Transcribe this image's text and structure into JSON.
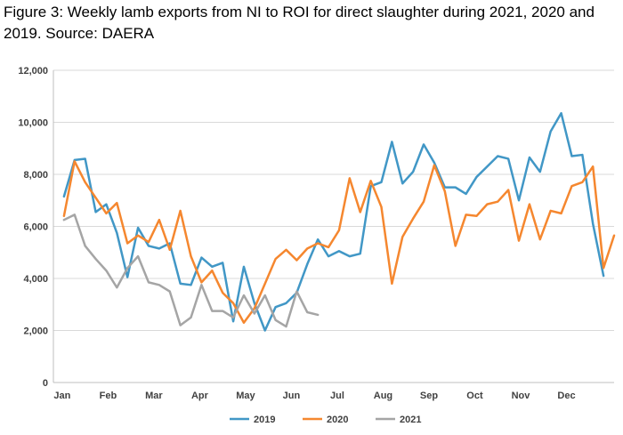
{
  "title": "Figure 3: Weekly lamb exports from NI to ROI for direct slaughter during 2021, 2020 and 2019. Source: DAERA",
  "chart_data": {
    "type": "line",
    "title": "Figure 3: Weekly lamb exports from NI to ROI for direct slaughter during 2021, 2020 and 2019. Source: DAERA",
    "x_unit": "week",
    "ylim": [
      0,
      12000
    ],
    "y_ticks": [
      0,
      2000,
      4000,
      6000,
      8000,
      10000,
      12000
    ],
    "y_tick_labels": [
      "0",
      "2,000",
      "4,000",
      "6,000",
      "8,000",
      "10,000",
      "12,000"
    ],
    "x_tick_labels": [
      "Jan",
      "Feb",
      "Mar",
      "Apr",
      "May",
      "Jun",
      "Jul",
      "Aug",
      "Sep",
      "Oct",
      "Nov",
      "Dec"
    ],
    "grid": "horizontal",
    "legend_position": "bottom",
    "series": [
      {
        "name": "2019",
        "color": "#4197c6",
        "weeks": [
          1,
          2,
          3,
          4,
          5,
          6,
          7,
          8,
          9,
          10,
          11,
          12,
          13,
          14,
          15,
          16,
          17,
          18,
          19,
          20,
          21,
          22,
          23,
          24,
          25,
          26,
          27,
          28,
          29,
          30,
          31,
          32,
          33,
          34,
          35,
          36,
          37,
          38,
          39,
          40,
          41,
          42,
          43,
          44,
          45,
          46,
          47,
          48,
          49,
          50,
          51,
          52
        ],
        "values": [
          7150,
          8550,
          8600,
          6550,
          6850,
          5750,
          4050,
          5950,
          5250,
          5150,
          5350,
          3800,
          3750,
          4800,
          4450,
          4600,
          2350,
          4450,
          3050,
          2000,
          2900,
          3050,
          3450,
          4550,
          5500,
          4850,
          5050,
          4850,
          4950,
          7550,
          7700,
          9250,
          7650,
          8100,
          9150,
          8450,
          7500,
          7500,
          7250,
          7900,
          8300,
          8700,
          8600,
          7000,
          8650,
          8100,
          9650,
          10350,
          8700,
          8750,
          6100,
          4100
        ]
      },
      {
        "name": "2020",
        "color": "#f5872f",
        "weeks": [
          1,
          2,
          3,
          4,
          5,
          6,
          7,
          8,
          9,
          10,
          11,
          12,
          13,
          14,
          15,
          16,
          17,
          18,
          19,
          20,
          21,
          22,
          23,
          24,
          25,
          26,
          27,
          28,
          29,
          30,
          31,
          32,
          33,
          34,
          35,
          36,
          37,
          38,
          39,
          40,
          41,
          42,
          43,
          44,
          45,
          46,
          47,
          48,
          49,
          50,
          51,
          52,
          53
        ],
        "values": [
          6400,
          8500,
          7700,
          7100,
          6500,
          6900,
          5350,
          5650,
          5400,
          6250,
          5100,
          6600,
          4850,
          3850,
          4300,
          3450,
          3050,
          2300,
          2850,
          3800,
          4750,
          5100,
          4700,
          5150,
          5350,
          5200,
          5850,
          7850,
          6550,
          7750,
          6750,
          3800,
          5600,
          6300,
          6950,
          8350,
          7350,
          5250,
          6450,
          6400,
          6850,
          6950,
          7400,
          5450,
          6850,
          5500,
          6600,
          6500,
          7550,
          7700,
          8300,
          4400,
          5650
        ]
      },
      {
        "name": "2021",
        "color": "#a5a5a5",
        "weeks": [
          1,
          2,
          3,
          4,
          5,
          6,
          7,
          8,
          9,
          10,
          11,
          12,
          13,
          14,
          15,
          16,
          17,
          18,
          19,
          20,
          21,
          22,
          23,
          24,
          25
        ],
        "values": [
          6250,
          6450,
          5250,
          4750,
          4300,
          3650,
          4400,
          4850,
          3850,
          3750,
          3500,
          2200,
          2500,
          3750,
          2750,
          2750,
          2500,
          3350,
          2650,
          3350,
          2400,
          2150,
          3500,
          2700,
          2600
        ]
      }
    ]
  }
}
